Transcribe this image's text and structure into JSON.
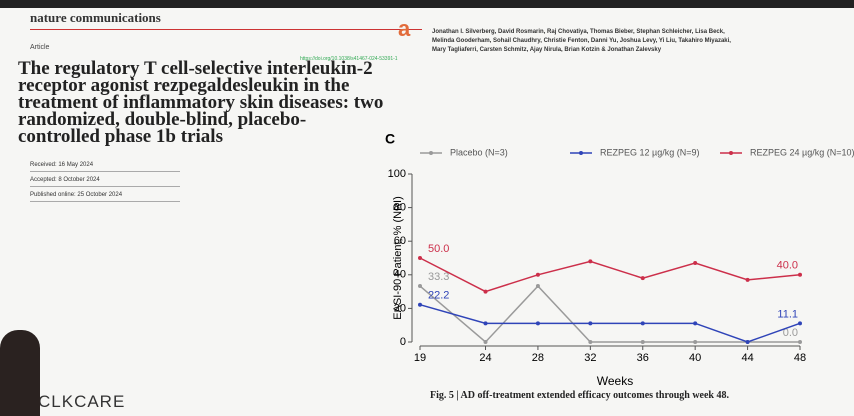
{
  "journal": "nature communications",
  "article_type": "Article",
  "doi": "https://doi.org/10.1038/s41467-024-53391-1",
  "title_lines": [
    "The regulatory T cell-selective interleukin-2",
    "receptor agonist rezpegaldesleukin in the",
    "treatment of inflammatory skin diseases: two",
    "randomized, double-blind, placebo-",
    "controlled phase 1b trials"
  ],
  "authors_lines": [
    "Jonathan I. Silverberg, David Rosmarin, Raj Chovatiya, Thomas Bieber, Stephan Schleicher, Lisa Beck,",
    "Melinda Gooderham, Sohail Chaudhry, Christie Fenton, Danni Yu, Joshua Levy, Yi Liu, Takahiro Miyazaki,",
    "Mary Tagliaferri, Carsten Schmitz, Ajay Nirula, Brian Kotzin & Jonathan Zalevsky"
  ],
  "dates": [
    "Received: 16 May 2024",
    "Accepted: 8 October 2024",
    "Published online: 25 October 2024"
  ],
  "caption": "Fig. 5 | AD off-treatment extended efficacy outcomes through week 48.",
  "logo": "CLKCARE",
  "chart_data": {
    "type": "line",
    "panel": "C",
    "x_label": "Weeks",
    "y_label": "EASI-90 Patient, % (NRI)",
    "x": [
      19,
      24,
      28,
      32,
      36,
      40,
      44,
      48
    ],
    "xlim": [
      19,
      48
    ],
    "xticks": [
      19,
      24,
      28,
      32,
      36,
      40,
      44,
      48
    ],
    "ylim": [
      0,
      100
    ],
    "yticks": [
      0,
      20,
      40,
      60,
      80,
      100
    ],
    "series": [
      {
        "name": "Placebo (N=3)",
        "color": "#9a9a9a",
        "values": [
          33.3,
          0,
          33.3,
          0,
          0,
          0,
          0,
          0
        ],
        "value_labels": [
          "33.3",
          null,
          null,
          null,
          null,
          null,
          null,
          "0.0"
        ]
      },
      {
        "name": "REZPEG 12 µg/kg (N=9)",
        "color": "#2f44b8",
        "values": [
          22.2,
          11.1,
          11.1,
          11.1,
          11.1,
          11.1,
          0,
          11.1
        ],
        "value_labels": [
          "22.2",
          null,
          null,
          null,
          null,
          null,
          null,
          "11.1"
        ]
      },
      {
        "name": "REZPEG 24 µg/kg (N=10)",
        "color": "#cc2f4a",
        "values": [
          50,
          30,
          40,
          48,
          38,
          47,
          37,
          40
        ],
        "value_labels": [
          "50.0",
          null,
          null,
          null,
          null,
          null,
          null,
          "40.0"
        ]
      }
    ]
  }
}
